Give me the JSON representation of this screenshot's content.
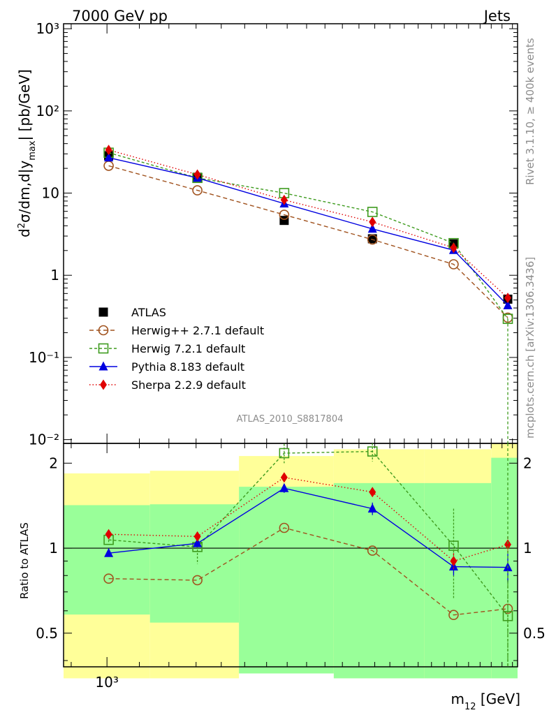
{
  "header": {
    "left_title": "7000 GeV pp",
    "right_title": "Jets",
    "side_rivet": "Rivet 3.1.10, ≥ 400k events",
    "side_mcplots": "mcplots.cern.ch [arXiv:1306.3436]",
    "analysis_label": "ATLAS_2010_S8817804"
  },
  "chart_data": {
    "type": "line",
    "x_axis": {
      "label": "m₁₂ [GeV]",
      "scale": "log",
      "xlim": [
        880,
        3350
      ],
      "tick_label": "10³"
    },
    "main": {
      "ylabel": "d²σ/dm,d|y_max| [pb/GeV]",
      "scale": "log",
      "ylim": [
        0.009,
        1150
      ],
      "ticks": [
        {
          "value": 1000,
          "text": "10³"
        },
        {
          "value": 100,
          "text": "10²"
        },
        {
          "value": 10,
          "text": "10"
        },
        {
          "value": 1,
          "text": "1"
        },
        {
          "value": 0.1,
          "text": "10⁻¹"
        },
        {
          "value": 0.01,
          "text": "10⁻²"
        }
      ]
    },
    "ratio": {
      "ylabel": "Ratio to ATLAS",
      "scale": "log",
      "ylim": [
        0.38,
        2.35
      ],
      "reference": 1,
      "ticks": [
        {
          "value": 2,
          "text": "2"
        },
        {
          "value": 1,
          "text": "1"
        },
        {
          "value": 0.5,
          "text": "0.5"
        }
      ]
    },
    "bins": [
      {
        "lo": 880,
        "hi": 1135,
        "x": 1005,
        "y": 28.5,
        "green": [
          0.582,
          1.42
        ],
        "yellow": [
          0.346,
          1.84
        ]
      },
      {
        "lo": 1135,
        "hi": 1475,
        "x": 1305,
        "y": 15.6,
        "green": [
          0.545,
          1.43
        ],
        "yellow": [
          0.346,
          1.88
        ]
      },
      {
        "lo": 1475,
        "hi": 1950,
        "x": 1685,
        "y": 4.65,
        "green": [
          0.36,
          1.65
        ],
        "yellow": [
          0.36,
          2.12
        ]
      },
      {
        "lo": 1950,
        "hi": 2545,
        "x": 2185,
        "y": 2.78,
        "green": [
          0.346,
          1.7
        ],
        "yellow": [
          0.346,
          2.24
        ]
      },
      {
        "lo": 2545,
        "hi": 3100,
        "x": 2775,
        "y": 2.41,
        "green": [
          0.346,
          1.7
        ],
        "yellow": [
          0.346,
          2.24
        ]
      },
      {
        "lo": 3100,
        "hi": 3350,
        "x": 3255,
        "y": 0.512,
        "green": [
          0.346,
          2.09
        ],
        "yellow": [
          0.346,
          2.35
        ]
      }
    ],
    "series": [
      {
        "name": "ATLAS",
        "color": "#000000",
        "marker": "square-filled",
        "dash": "none",
        "y": [
          28.5,
          15.6,
          4.65,
          2.78,
          2.41,
          0.512
        ]
      },
      {
        "name": "Herwig++ 2.7.1 default",
        "color": "#a0521e",
        "marker": "circle-open",
        "dash": "6,4",
        "y": [
          21.5,
          10.8,
          5.45,
          2.72,
          1.36,
          0.305
        ],
        "ratio": [
          0.78,
          0.77,
          1.18,
          0.98,
          0.58,
          0.61
        ]
      },
      {
        "name": "Herwig 7.2.1 default",
        "color": "#3e9b1e",
        "marker": "square-open",
        "dash": "4,3",
        "y": [
          31,
          15.3,
          10,
          5.9,
          2.46,
          0.295
        ],
        "ratio": [
          1.07,
          1.01,
          2.17,
          2.2,
          1.02,
          0.575
        ],
        "ratio_err": [
          0.03,
          0.13,
          0.17,
          0.17,
          0.36,
          0.2
        ]
      },
      {
        "name": "Pythia 8.183 default",
        "color": "#0000e0",
        "marker": "triangle-filled",
        "dash": "none",
        "y": [
          27,
          15.3,
          7.45,
          3.67,
          2.02,
          0.43
        ],
        "ratio": [
          0.96,
          1.04,
          1.63,
          1.38,
          0.86,
          0.855
        ],
        "ratio_err": [
          0,
          0.02,
          0.06,
          0.07,
          0.06,
          0.1
        ]
      },
      {
        "name": "Sherpa 2.2.9 default",
        "color": "#e00000",
        "marker": "diamond-filled",
        "dash": "1.5,3",
        "y": [
          33.5,
          16.8,
          8.25,
          4.45,
          2.16,
          0.53
        ],
        "ratio": [
          1.12,
          1.1,
          1.78,
          1.58,
          0.9,
          1.03
        ],
        "ratio_err": [
          0.04,
          0.03,
          0.06,
          0.05,
          0.06,
          0.07
        ]
      }
    ]
  }
}
